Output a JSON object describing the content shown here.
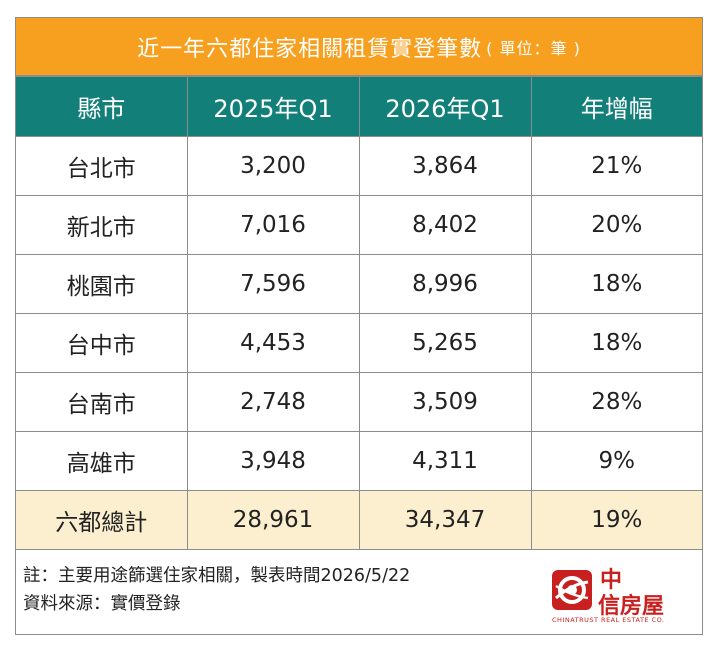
{
  "title": {
    "main": "近一年六都住家相關租賃實登筆數",
    "unit": "( 單位：筆 )"
  },
  "table": {
    "headers": [
      "縣市",
      "2025年Q1",
      "2026年Q1",
      "年增幅"
    ],
    "rows": [
      [
        "台北市",
        "3,200",
        "3,864",
        "21%"
      ],
      [
        "新北市",
        "7,016",
        "8,402",
        "20%"
      ],
      [
        "桃園市",
        "7,596",
        "8,996",
        "18%"
      ],
      [
        "台中市",
        "4,453",
        "5,265",
        "18%"
      ],
      [
        "台南市",
        "2,748",
        "3,509",
        "28%"
      ],
      [
        "高雄市",
        "3,948",
        "4,311",
        "9%"
      ]
    ],
    "total": [
      "六都總計",
      "28,961",
      "34,347",
      "19%"
    ]
  },
  "footer": {
    "note": "註：主要用途篩選住家相關，製表時間2026/5/22",
    "source": "資料來源：實價登錄"
  },
  "logo": {
    "line1": "中",
    "line2": "信房屋",
    "english": "CHINATRUST REAL ESTATE CO."
  },
  "colors": {
    "title_bg": "#f7a020",
    "header_bg": "#137f79",
    "total_bg": "#fcefd0",
    "brand": "#c8201e"
  }
}
